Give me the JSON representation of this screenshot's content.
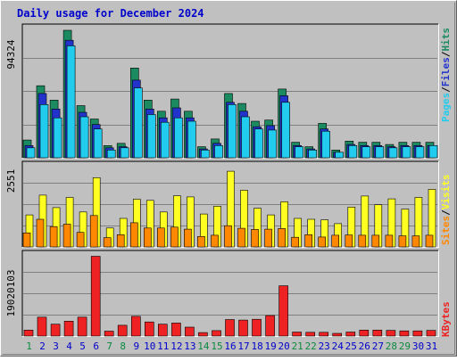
{
  "chart_data": {
    "type": "bar",
    "title": "Daily usage for December 2024",
    "categories": [
      "1",
      "2",
      "3",
      "4",
      "5",
      "6",
      "7",
      "8",
      "9",
      "10",
      "11",
      "12",
      "13",
      "14",
      "15",
      "16",
      "17",
      "18",
      "19",
      "20",
      "21",
      "22",
      "23",
      "24",
      "25",
      "26",
      "27",
      "28",
      "29",
      "30",
      "31"
    ],
    "weekend_days": [
      "1",
      "7",
      "8",
      "14",
      "15",
      "21",
      "22",
      "28",
      "29"
    ],
    "panels": [
      {
        "name": "top",
        "scale_label": "94324",
        "scale_value": 94324,
        "ymax": 119000,
        "series": [
          {
            "name": "Hits",
            "color": "#1b8a60",
            "values": [
              16000,
              65000,
              52000,
              115000,
              47000,
              35000,
              11000,
              13000,
              81000,
              52000,
              42000,
              53000,
              42000,
              10000,
              17000,
              58000,
              49000,
              33000,
              34000,
              62000,
              14000,
              10000,
              31000,
              7000,
              15000,
              14000,
              14000,
              12000,
              14000,
              14000,
              14000
            ]
          },
          {
            "name": "Files",
            "color": "#2233cc",
            "values": [
              11000,
              58000,
              44000,
              106000,
              41000,
              30000,
              9000,
              10000,
              70000,
              44000,
              36000,
              45000,
              36000,
              8000,
              13000,
              50000,
              42000,
              28000,
              29000,
              56000,
              11000,
              8000,
              26000,
              5000,
              12000,
              11000,
              11000,
              10000,
              11000,
              11000,
              11000
            ]
          },
          {
            "name": "Pages",
            "color": "#22ccee",
            "values": [
              9000,
              48000,
              36000,
              101000,
              37000,
              26000,
              7000,
              9000,
              63000,
              39000,
              32000,
              36000,
              33000,
              7000,
              11000,
              48000,
              37000,
              26000,
              25000,
              50000,
              10000,
              7000,
              24000,
              5000,
              11000,
              10000,
              10000,
              9000,
              10000,
              10000,
              11000
            ]
          }
        ]
      },
      {
        "name": "middle",
        "scale_label": "2551",
        "scale_value": 2551,
        "ymax": 2880,
        "series": [
          {
            "name": "Visits",
            "color": "#ffff22",
            "values": [
              1100,
              1780,
              1350,
              1700,
              1200,
              2380,
              650,
              980,
              1640,
              1600,
              1200,
              1760,
              1720,
              1130,
              1400,
              2600,
              1950,
              1330,
              1100,
              1550,
              980,
              950,
              930,
              800,
              1370,
              1750,
              1450,
              1650,
              1300,
              1700,
              1980
            ]
          },
          {
            "name": "Sites",
            "color": "#ff8800",
            "values": [
              480,
              950,
              700,
              780,
              500,
              1080,
              320,
              420,
              830,
              650,
              650,
              680,
              610,
              360,
              400,
              730,
              640,
              600,
              610,
              630,
              330,
              420,
              340,
              400,
              410,
              400,
              400,
              400,
              380,
              380,
              400
            ]
          }
        ]
      },
      {
        "name": "bottom",
        "scale_label": "19020103",
        "scale_value": 19020103,
        "ymax": 31000000,
        "series": [
          {
            "name": "KBytes",
            "color": "#ee2222",
            "values": [
              2200000,
              7000000,
              4400000,
              5500000,
              7000000,
              29500000,
              1800000,
              4000000,
              7300000,
              5200000,
              4400000,
              4800000,
              3300000,
              1300000,
              2000000,
              6100000,
              5900000,
              6200000,
              7600000,
              18600000,
              1500000,
              1400000,
              1400000,
              1000000,
              1500000,
              2200000,
              2200000,
              2100000,
              1900000,
              1900000,
              2100000
            ]
          }
        ]
      }
    ],
    "legend": {
      "top": [
        {
          "name": "Pages",
          "color": "#22ccee"
        },
        {
          "sep": "/"
        },
        {
          "name": "Files",
          "color": "#2233cc"
        },
        {
          "sep": "/"
        },
        {
          "name": "Hits",
          "color": "#1b8a60"
        }
      ],
      "middle": [
        {
          "name": "Sites",
          "color": "#ff8800"
        },
        {
          "sep": "/"
        },
        {
          "name": "Visits",
          "color": "#ffff22"
        }
      ],
      "bottom": [
        {
          "name": "KBytes",
          "color": "#ee2222"
        }
      ]
    },
    "colors": {
      "background": "#c0c0c0",
      "plot_background": "#c0c0c0",
      "title": "#0000cc",
      "weekday_label": "#0000cc",
      "weekend_label": "#0a8a40",
      "grid": "#808080",
      "separator": "#000000"
    }
  }
}
